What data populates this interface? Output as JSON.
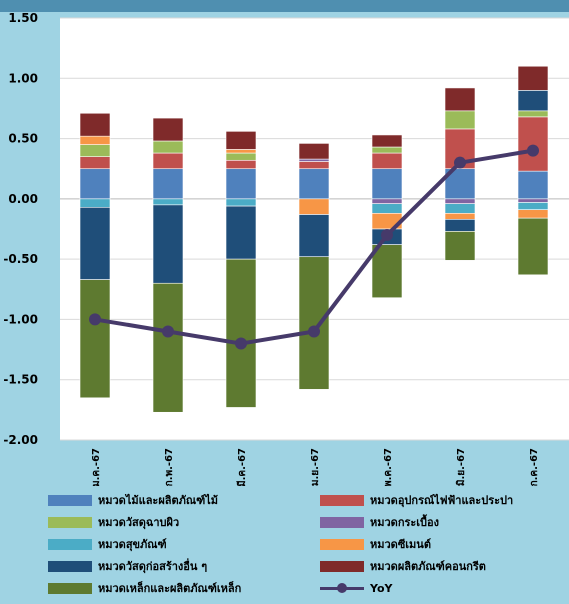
{
  "chart_data": {
    "type": "bar",
    "stacked": true,
    "categories": [
      "ม.ค.-67",
      "ก.พ.-67",
      "มี.ค.-67",
      "เม.ย.-67",
      "พ.ค.-67",
      "มิ.ย.-67",
      "ก.ค.-67"
    ],
    "ylim": [
      -2.0,
      1.5
    ],
    "yticks": [
      "-2.00",
      "-1.50",
      "-1.00",
      "-0.50",
      "0.00",
      "0.50",
      "1.00",
      "1.50"
    ],
    "series": [
      {
        "name": "หมวดไม้และผลิตภัณฑ์ไม้",
        "color": "#4f81bd",
        "values": [
          0.25,
          0.25,
          0.25,
          0.25,
          0.25,
          0.25,
          0.23
        ]
      },
      {
        "name": "หมวดอุปกรณ์ไฟฟ้าและประปา",
        "color": "#c0504d",
        "values": [
          0.1,
          0.13,
          0.07,
          0.06,
          0.13,
          0.33,
          0.45
        ]
      },
      {
        "name": "หมวดวัสดุฉาบผิว",
        "color": "#9bbb59",
        "values": [
          0.1,
          0.1,
          0.06,
          0.0,
          0.05,
          0.15,
          0.05
        ]
      },
      {
        "name": "หมวดกระเบื้อง",
        "color": "#8064a2",
        "values": [
          0.0,
          0.0,
          0.0,
          0.02,
          -0.04,
          -0.04,
          -0.03
        ]
      },
      {
        "name": "หมวดสุขภัณฑ์",
        "color": "#4bacc6",
        "values": [
          -0.07,
          -0.05,
          -0.06,
          0.0,
          -0.08,
          -0.08,
          -0.06
        ]
      },
      {
        "name": "หมวดซีเมนต์",
        "color": "#f79646",
        "values": [
          0.07,
          0.0,
          0.03,
          -0.13,
          -0.13,
          -0.05,
          -0.07
        ]
      },
      {
        "name": "หมวดวัสดุก่อสร้างอื่น ๆ",
        "color": "#1f4e79",
        "values": [
          -0.6,
          -0.65,
          -0.44,
          -0.35,
          -0.13,
          -0.1,
          0.17
        ]
      },
      {
        "name": "หมวดผลิตภัณฑ์คอนกรีต",
        "color": "#7f2a2a",
        "values": [
          0.19,
          0.19,
          0.15,
          0.13,
          0.1,
          0.19,
          0.2
        ]
      },
      {
        "name": "หมวดเหล็กและผลิตภัณฑ์เหล็ก",
        "color": "#5e7a30",
        "values": [
          -0.98,
          -1.07,
          -1.23,
          -1.1,
          -0.44,
          -0.24,
          -0.47
        ]
      }
    ],
    "line": {
      "name": "YoY",
      "color": "#463a6a",
      "values": [
        -1.0,
        -1.1,
        -1.2,
        -1.1,
        -0.3,
        0.3,
        0.4
      ]
    }
  }
}
